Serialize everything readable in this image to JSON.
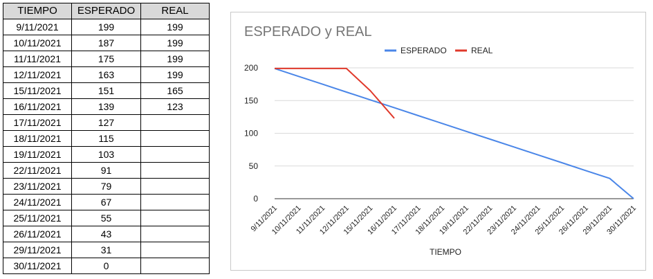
{
  "table": {
    "headers": [
      "TIEMPO",
      "ESPERADO",
      "REAL"
    ],
    "rows": [
      [
        "9/11/2021",
        "199",
        "199"
      ],
      [
        "10/11/2021",
        "187",
        "199"
      ],
      [
        "11/11/2021",
        "175",
        "199"
      ],
      [
        "12/11/2021",
        "163",
        "199"
      ],
      [
        "15/11/2021",
        "151",
        "165"
      ],
      [
        "16/11/2021",
        "139",
        "123"
      ],
      [
        "17/11/2021",
        "127",
        ""
      ],
      [
        "18/11/2021",
        "115",
        ""
      ],
      [
        "19/11/2021",
        "103",
        ""
      ],
      [
        "22/11/2021",
        "91",
        ""
      ],
      [
        "23/11/2021",
        "79",
        ""
      ],
      [
        "24/11/2021",
        "67",
        ""
      ],
      [
        "25/11/2021",
        "55",
        ""
      ],
      [
        "26/11/2021",
        "43",
        ""
      ],
      [
        "29/11/2021",
        "31",
        ""
      ],
      [
        "30/11/2021",
        "0",
        ""
      ]
    ]
  },
  "chart_data": {
    "type": "line",
    "title": "ESPERADO y REAL",
    "xlabel": "TIEMPO",
    "ylabel": "",
    "x": [
      "9/11/2021",
      "10/11/2021",
      "11/11/2021",
      "12/11/2021",
      "15/11/2021",
      "16/11/2021",
      "17/11/2021",
      "18/11/2021",
      "19/11/2021",
      "22/11/2021",
      "23/11/2021",
      "24/11/2021",
      "25/11/2021",
      "26/11/2021",
      "29/11/2021",
      "30/11/2021"
    ],
    "series": [
      {
        "name": "ESPERADO",
        "color": "#4a86e8",
        "values": [
          199,
          187,
          175,
          163,
          151,
          139,
          127,
          115,
          103,
          91,
          79,
          67,
          55,
          43,
          31,
          0
        ]
      },
      {
        "name": "REAL",
        "color": "#e0392b",
        "values": [
          199,
          199,
          199,
          199,
          165,
          123,
          null,
          null,
          null,
          null,
          null,
          null,
          null,
          null,
          null,
          null
        ]
      }
    ],
    "ylim": [
      0,
      200
    ],
    "yticks": [
      "0",
      "50",
      "100",
      "150",
      "200"
    ],
    "grid": true,
    "legend": "top"
  }
}
